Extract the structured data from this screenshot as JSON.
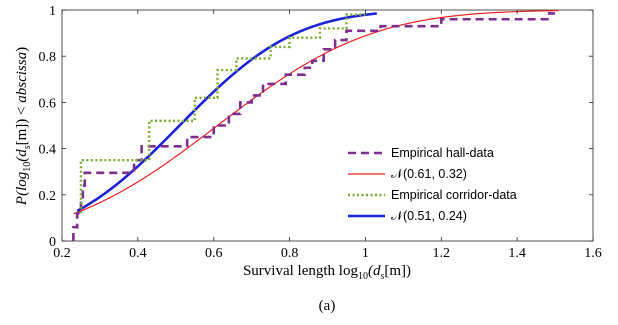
{
  "chart_data": {
    "type": "line",
    "title": "",
    "xlabel_prefix": "Survival length log",
    "xlabel_sub": "10",
    "xlabel_suffix": "(d",
    "xlabel_sub2": "s",
    "xlabel_end": "[m])",
    "ylabel_prefix": "P(log",
    "ylabel_sub": "10",
    "ylabel_mid": "(d",
    "ylabel_sub2": "s",
    "ylabel_mid2": "[m]) < ",
    "ylabel_italic": "abscissa",
    "ylabel_end": ")",
    "caption": "(a)",
    "xlim": [
      0.2,
      1.6
    ],
    "ylim": [
      0,
      1
    ],
    "x_ticks": [
      0.2,
      0.4,
      0.6,
      0.8,
      1.0,
      1.2,
      1.4,
      1.6
    ],
    "x_tick_labels": [
      "0.2",
      "0.4",
      "0.6",
      "0.8",
      "1",
      "1.2",
      "1.4",
      "1.6"
    ],
    "y_ticks": [
      0,
      0.2,
      0.4,
      0.6,
      0.8,
      1
    ],
    "y_tick_labels": [
      "0",
      "0.2",
      "0.4",
      "0.6",
      "0.8",
      "1"
    ],
    "grid": false,
    "legend_position": "right",
    "series": [
      {
        "name": "Empirical hall-data",
        "kind": "step",
        "color": "#7e2f8e",
        "dash": "dashed",
        "points": [
          [
            0.23,
            0.0
          ],
          [
            0.23,
            0.06
          ],
          [
            0.24,
            0.06
          ],
          [
            0.24,
            0.12
          ],
          [
            0.25,
            0.12
          ],
          [
            0.25,
            0.18
          ],
          [
            0.255,
            0.18
          ],
          [
            0.255,
            0.24
          ],
          [
            0.26,
            0.24
          ],
          [
            0.26,
            0.295
          ],
          [
            0.39,
            0.295
          ],
          [
            0.39,
            0.35
          ],
          [
            0.41,
            0.35
          ],
          [
            0.41,
            0.41
          ],
          [
            0.53,
            0.41
          ],
          [
            0.53,
            0.45
          ],
          [
            0.6,
            0.45
          ],
          [
            0.6,
            0.5
          ],
          [
            0.64,
            0.5
          ],
          [
            0.64,
            0.55
          ],
          [
            0.67,
            0.55
          ],
          [
            0.67,
            0.6
          ],
          [
            0.7,
            0.6
          ],
          [
            0.7,
            0.63
          ],
          [
            0.73,
            0.63
          ],
          [
            0.73,
            0.68
          ],
          [
            0.79,
            0.68
          ],
          [
            0.79,
            0.72
          ],
          [
            0.84,
            0.72
          ],
          [
            0.84,
            0.75
          ],
          [
            0.86,
            0.75
          ],
          [
            0.86,
            0.78
          ],
          [
            0.89,
            0.78
          ],
          [
            0.89,
            0.83
          ],
          [
            0.92,
            0.83
          ],
          [
            0.92,
            0.87
          ],
          [
            0.95,
            0.87
          ],
          [
            0.95,
            0.91
          ],
          [
            1.04,
            0.91
          ],
          [
            1.04,
            0.93
          ],
          [
            1.2,
            0.93
          ],
          [
            1.2,
            0.96
          ],
          [
            1.48,
            0.96
          ],
          [
            1.48,
            0.985
          ],
          [
            1.5,
            0.985
          ]
        ]
      },
      {
        "name": "𝒩(0.61, 0.32)",
        "kind": "normal_cdf",
        "mu": 0.61,
        "sigma": 0.32,
        "color": "#e8201f",
        "dash": "solid",
        "x_range": [
          0.23,
          1.51
        ]
      },
      {
        "name": "Empirical corridor-data",
        "kind": "step",
        "color": "#77ac30",
        "dash": "dotted",
        "points": [
          [
            0.25,
            0.12
          ],
          [
            0.25,
            0.35
          ],
          [
            0.43,
            0.35
          ],
          [
            0.43,
            0.52
          ],
          [
            0.55,
            0.52
          ],
          [
            0.55,
            0.62
          ],
          [
            0.61,
            0.62
          ],
          [
            0.61,
            0.74
          ],
          [
            0.66,
            0.74
          ],
          [
            0.66,
            0.79
          ],
          [
            0.75,
            0.79
          ],
          [
            0.75,
            0.84
          ],
          [
            0.8,
            0.84
          ],
          [
            0.8,
            0.88
          ],
          [
            0.88,
            0.88
          ],
          [
            0.88,
            0.92
          ],
          [
            0.95,
            0.92
          ],
          [
            0.95,
            0.98
          ],
          [
            1.0,
            0.98
          ]
        ]
      },
      {
        "name": "𝒩(0.51, 0.24)",
        "kind": "normal_cdf",
        "mu": 0.51,
        "sigma": 0.24,
        "color": "#1a23d6",
        "dash": "solid",
        "x_range": [
          0.24,
          1.03
        ]
      }
    ]
  }
}
